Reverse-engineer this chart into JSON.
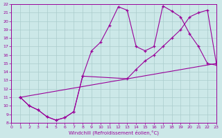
{
  "xlabel": "Windchill (Refroidissement éolien,°C)",
  "bg_color": "#cce8e8",
  "grid_color": "#aacccc",
  "line_color": "#990099",
  "xlim": [
    0,
    23
  ],
  "ylim": [
    8,
    22
  ],
  "xticks": [
    0,
    1,
    2,
    3,
    4,
    5,
    6,
    7,
    8,
    9,
    10,
    11,
    12,
    13,
    14,
    15,
    16,
    17,
    18,
    19,
    20,
    21,
    22,
    23
  ],
  "yticks": [
    8,
    9,
    10,
    11,
    12,
    13,
    14,
    15,
    16,
    17,
    18,
    19,
    20,
    21,
    22
  ],
  "line1_x": [
    1,
    2,
    3,
    4,
    5,
    6,
    7,
    8,
    9,
    10,
    11,
    12,
    13,
    14,
    15,
    16,
    17,
    18,
    19,
    20,
    21,
    22,
    23
  ],
  "line1_y": [
    11,
    10,
    9.5,
    8.7,
    8.3,
    8.6,
    9.3,
    13.5,
    16.5,
    17.5,
    19.5,
    21.7,
    21.3,
    17.0,
    16.5,
    17.0,
    21.8,
    21.2,
    20.5,
    18.5,
    17.0,
    15.0,
    14.8
  ],
  "line2_x": [
    1,
    2,
    3,
    4,
    5,
    6,
    7,
    8,
    13,
    14,
    15,
    16,
    17,
    18,
    19,
    20,
    21,
    22,
    23
  ],
  "line2_y": [
    11,
    10,
    9.5,
    8.7,
    8.3,
    8.6,
    9.3,
    13.5,
    13.2,
    14.3,
    15.3,
    16.0,
    17.0,
    18.0,
    19.0,
    20.5,
    21.0,
    21.3,
    15.0
  ],
  "line3_x": [
    1,
    23
  ],
  "line3_y": [
    11,
    15.0
  ]
}
